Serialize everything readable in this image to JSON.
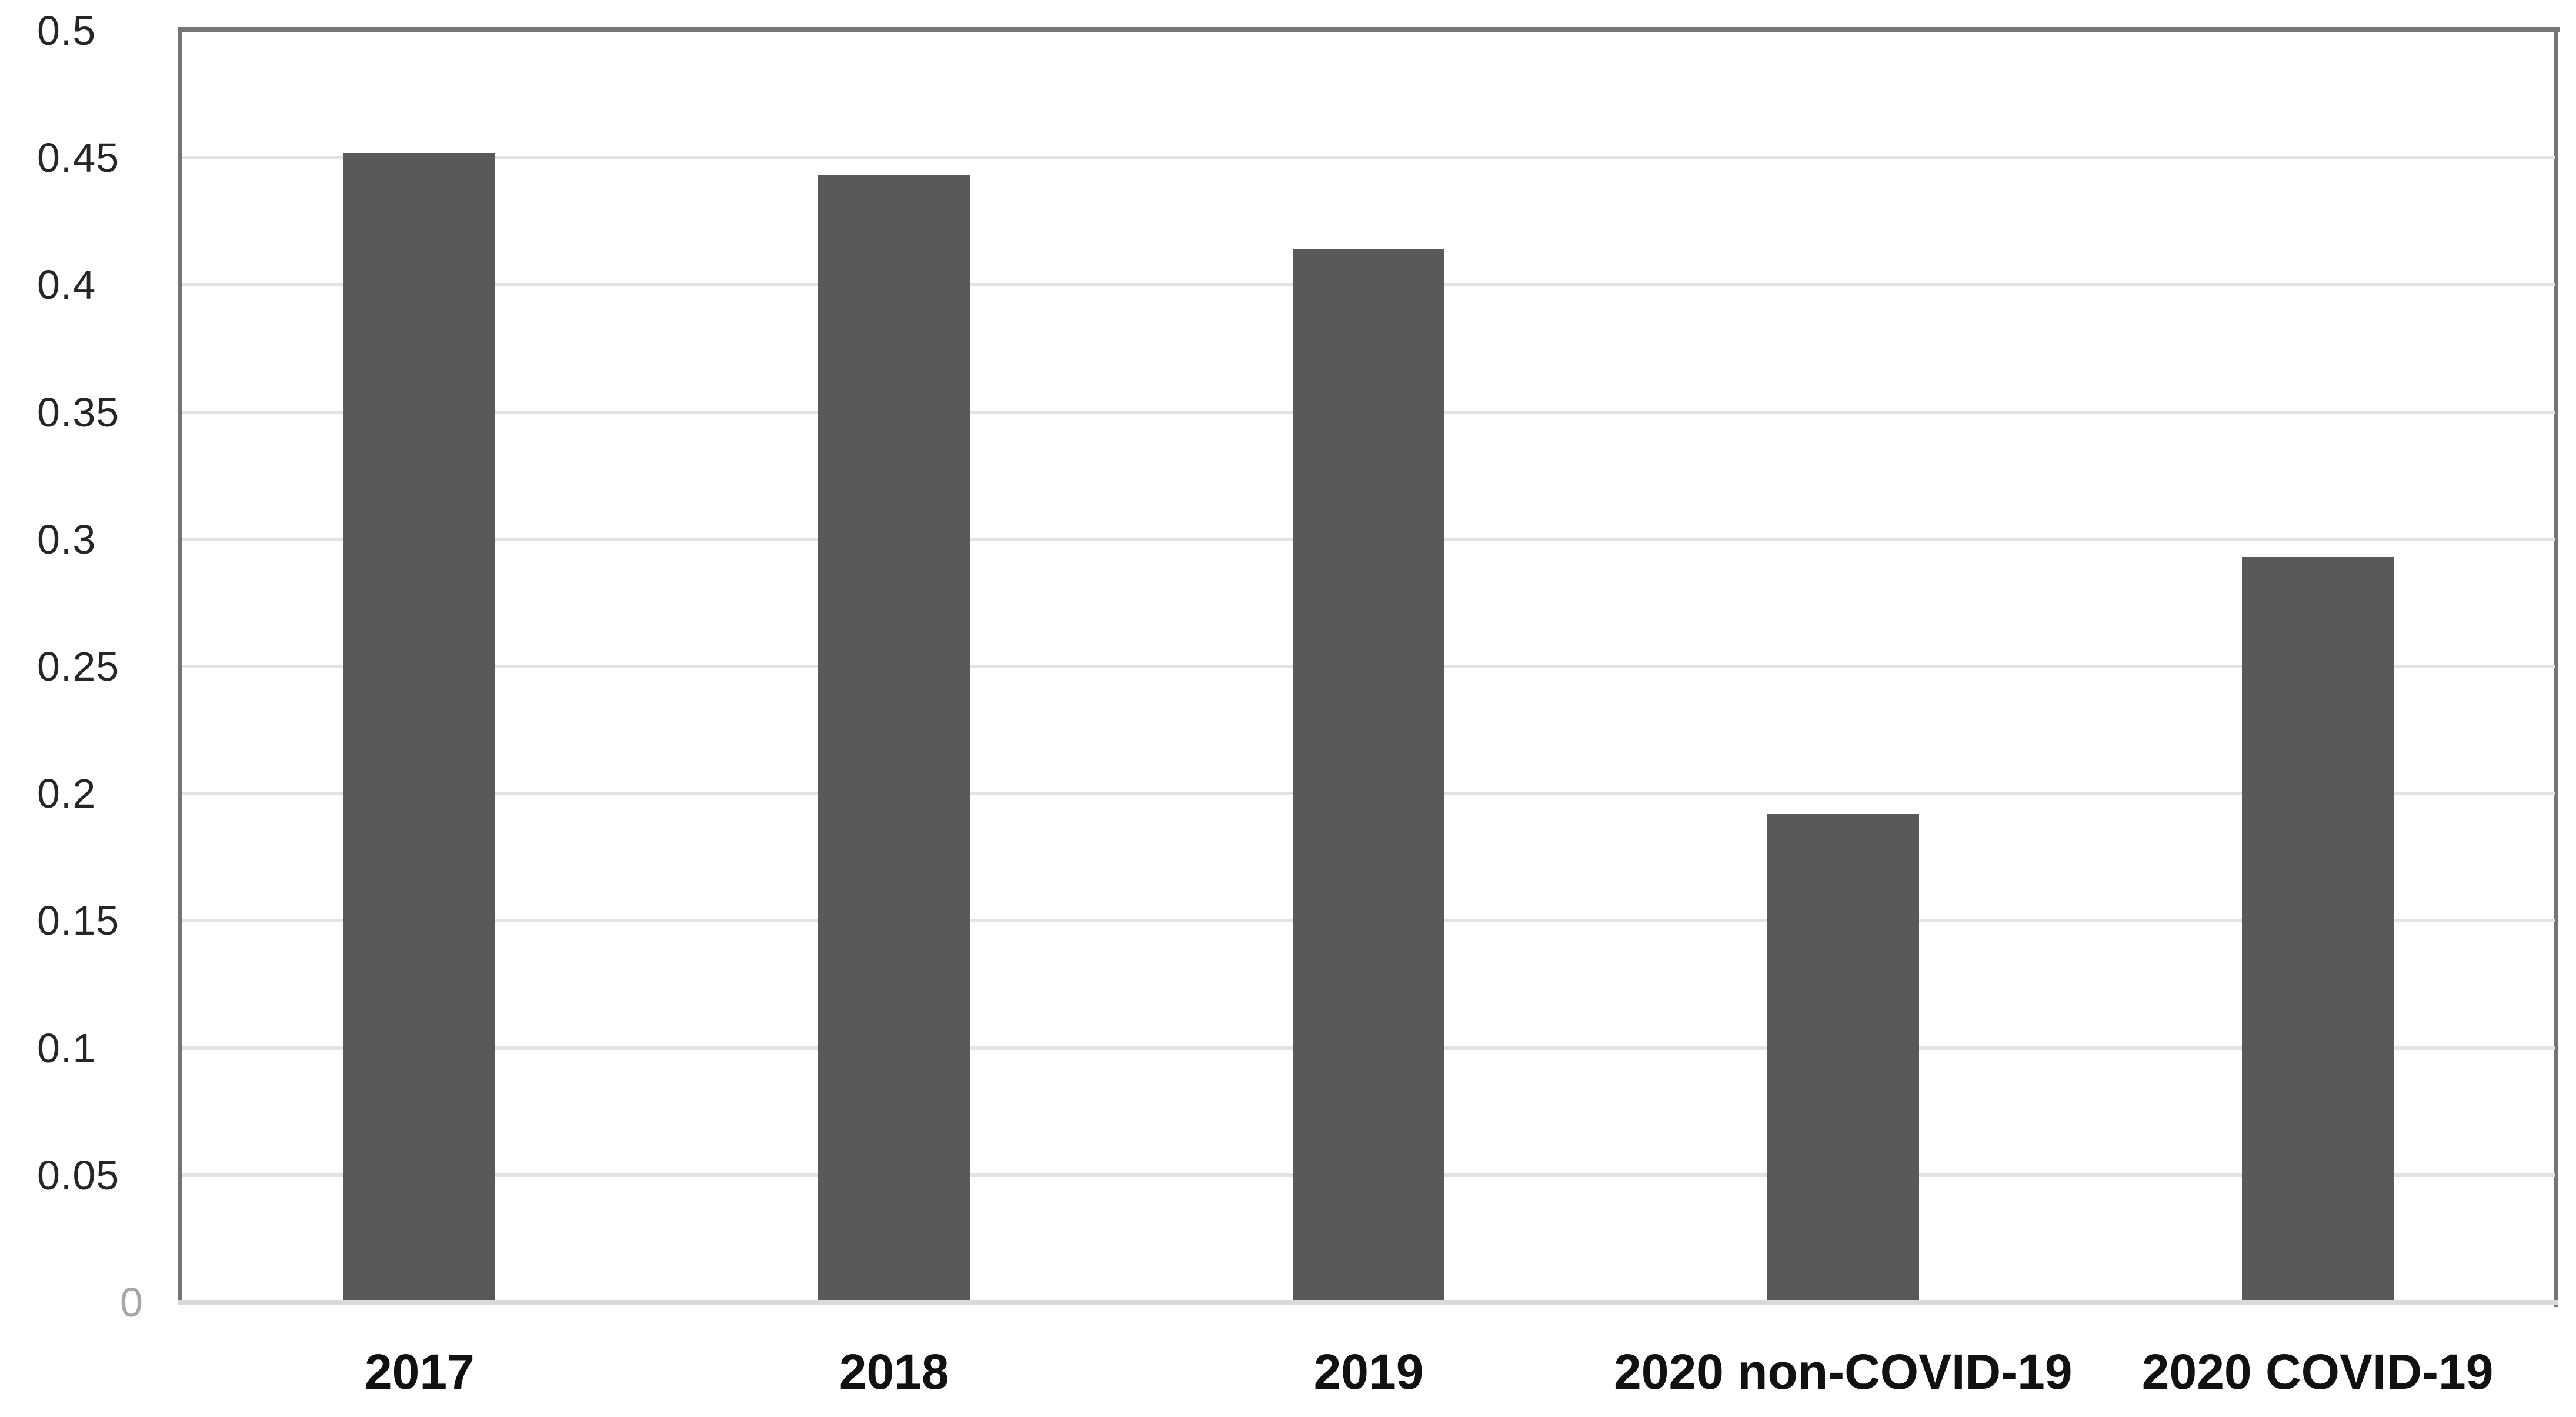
{
  "chart_data": {
    "type": "bar",
    "title": "",
    "xlabel": "",
    "ylabel": "",
    "categories": [
      "2017",
      "2018",
      "2019",
      "2020 non-COVID-19",
      "2020 COVID-19"
    ],
    "values": [
      0.452,
      0.443,
      0.414,
      0.192,
      0.293
    ],
    "ylim": [
      0,
      0.5
    ],
    "ytick_step": 0.05,
    "ytick_labels": [
      "0",
      "0.05",
      "0.1",
      "0.15",
      "0.2",
      "0.25",
      "0.3",
      "0.35",
      "0.4",
      "0.45",
      "0.5"
    ],
    "grid": true,
    "legend": false,
    "colors": {
      "bar": "#595959",
      "frame": "#757575",
      "gridline": "#e3e3e3",
      "baseline": "#d9d9d9",
      "tick_label": "#262626",
      "category_label": "#111111",
      "zero_label": "#a6a6a6",
      "background": "#ffffff"
    }
  }
}
